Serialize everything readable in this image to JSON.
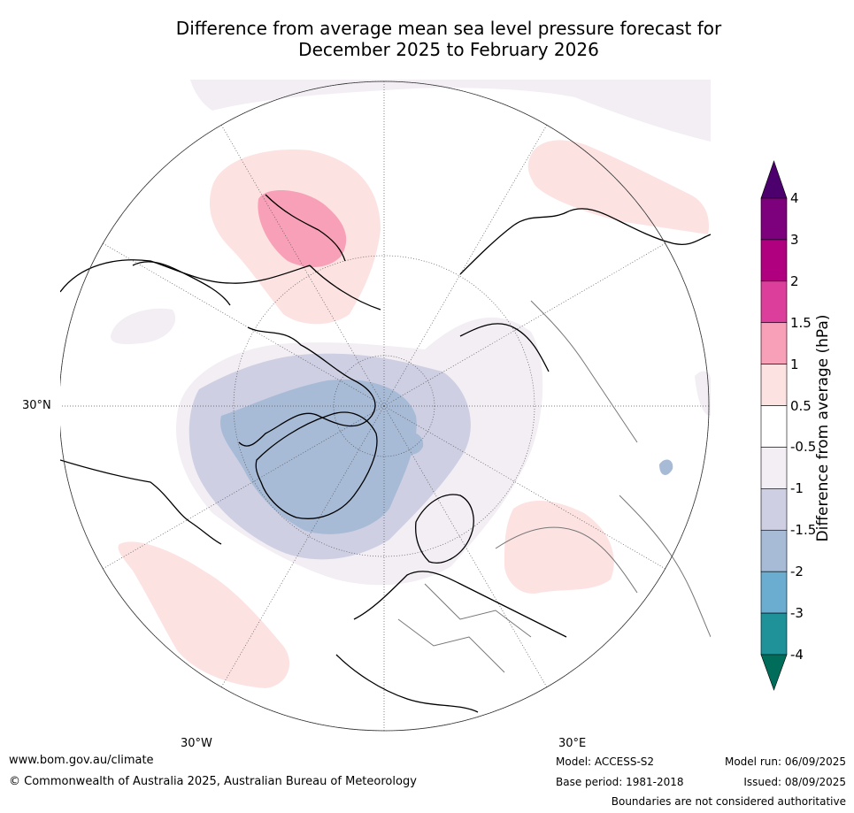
{
  "title": {
    "line1": "Difference from average mean sea level pressure forecast for",
    "line2": "December 2025 to February 2026"
  },
  "map": {
    "projection": "north-polar-stereographic",
    "lat_labels": [
      "30°N"
    ],
    "lon_labels": [
      "30°W",
      "30°E"
    ]
  },
  "colorbar": {
    "label": "Difference from average (hPa)",
    "tick_labels": [
      "4",
      "3",
      "2",
      "1.5",
      "1",
      "0.5",
      "-0.5",
      "-1",
      "-1.5",
      "-2",
      "-3",
      "-4"
    ],
    "colors": [
      "#4b006e",
      "#7d007d",
      "#b0007f",
      "#db3f9b",
      "#f8a0b7",
      "#fde2e2",
      "#ffffff",
      "#f2eef4",
      "#cfcfe3",
      "#a7bbd7",
      "#6aadd1",
      "#1f9299",
      "#006d5b"
    ]
  },
  "footer": {
    "website": "www.bom.gov.au/climate",
    "copyright": "© Commonwealth of Australia 2025, Australian Bureau of Meteorology",
    "model": "Model: ACCESS-S2",
    "base_period": "Base period: 1981-2018",
    "model_run": "Model run: 06/09/2025",
    "issued": "Issued: 08/09/2025",
    "disclaimer": "Boundaries are not considered authoritative"
  }
}
